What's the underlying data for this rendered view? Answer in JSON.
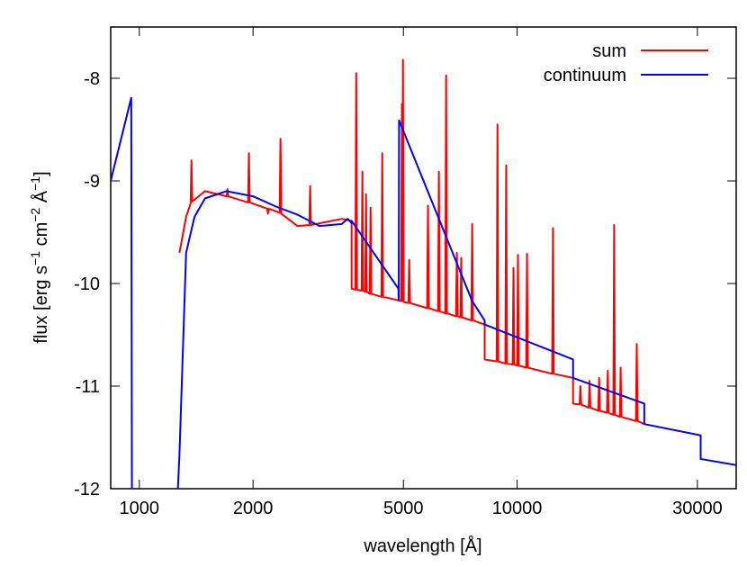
{
  "chart_data": {
    "type": "line",
    "xlabel": "wavelength [Å]",
    "ylabel": [
      "flux [erg s",
      "−1",
      " cm",
      "−2",
      " Å",
      "−1",
      "]"
    ],
    "xscale": "log",
    "xlim": [
      840,
      38000
    ],
    "xticks": [
      1000,
      2000,
      5000,
      10000,
      30000
    ],
    "ylim": [
      -12,
      -7.5
    ],
    "yticks": [
      -12,
      -11,
      -10,
      -9,
      -8
    ],
    "grid": false,
    "legend": "top-right",
    "series": [
      {
        "name": "sum",
        "color": "#ff0000",
        "x": [
          1277,
          1330,
          1367,
          1374,
          1381,
          1493,
          1703,
          1711,
          1719,
          1940,
          1950,
          1960,
          2180,
          2190,
          2200,
          2352,
          2364,
          2376,
          2624,
          2818,
          2832,
          2846,
          3435,
          3646,
          3647,
          3731,
          3750,
          3769,
          3875,
          3894,
          3913,
          3962,
          3981,
          4000,
          4073,
          4093,
          4113,
          4373,
          4395,
          4417,
          4930,
          4955,
          4970,
          4986,
          5011,
          5154,
          5180,
          5206,
          5779,
          5808,
          5837,
          6176,
          6207,
          6238,
          6454,
          6486,
          6518,
          6890,
          6925,
          6960,
          7076,
          7112,
          7148,
          7565,
          7603,
          7641,
          8204,
          8205,
          8826,
          8870,
          8914,
          9307,
          9354,
          9401,
          9731,
          9780,
          9829,
          10000,
          10050,
          10100,
          10567,
          10620,
          10673,
          12378,
          12440,
          12502,
          14060,
          14061,
          14627,
          14700,
          14773,
          15472,
          15550,
          15628,
          16398,
          16480,
          16562,
          17283,
          17370,
          17457,
          17970,
          18060,
          18150,
          18700,
          18790,
          18880,
          20626,
          20730,
          20834,
          21700
        ],
        "values": [
          -9.7,
          -9.35,
          -9.22,
          -8.8,
          -9.2,
          -9.1,
          -9.15,
          -9.08,
          -9.15,
          -9.21,
          -8.73,
          -9.21,
          -9.27,
          -9.32,
          -9.27,
          -9.31,
          -8.59,
          -9.32,
          -9.44,
          -9.43,
          -9.05,
          -9.43,
          -9.37,
          -9.39,
          -10.05,
          -10.06,
          -7.95,
          -10.06,
          -10.07,
          -8.91,
          -10.07,
          -10.08,
          -9.13,
          -10.08,
          -10.1,
          -9.26,
          -10.1,
          -10.13,
          -8.73,
          -10.13,
          -10.17,
          -8.25,
          -10.17,
          -7.82,
          -10.18,
          -10.19,
          -9.77,
          -10.19,
          -10.24,
          -9.24,
          -10.24,
          -10.27,
          -8.91,
          -10.27,
          -10.29,
          -7.97,
          -10.29,
          -10.32,
          -9.7,
          -10.32,
          -10.33,
          -9.75,
          -10.33,
          -10.36,
          -9.42,
          -10.36,
          -10.4,
          -10.74,
          -10.76,
          -8.45,
          -10.76,
          -10.78,
          -8.85,
          -10.78,
          -10.79,
          -9.85,
          -10.79,
          -10.8,
          -9.72,
          -10.8,
          -10.82,
          -9.71,
          -10.82,
          -10.88,
          -9.46,
          -10.88,
          -10.92,
          -11.17,
          -11.18,
          -11.0,
          -11.18,
          -11.21,
          -10.95,
          -11.21,
          -11.24,
          -10.92,
          -11.24,
          -11.26,
          -10.85,
          -11.26,
          -11.28,
          -9.43,
          -11.28,
          -11.3,
          -10.82,
          -11.3,
          -11.34,
          -10.59,
          -11.34,
          -11.37
        ]
      },
      {
        "name": "continuum",
        "color": "#0000ff",
        "x": [
          840,
          952,
          956,
          1166,
          1265,
          1277,
          1330,
          1400,
          1493,
          1700,
          2000,
          2300,
          2624,
          3000,
          3435,
          3560,
          3646,
          3647,
          4850,
          4860,
          4870,
          7600,
          8204,
          8205,
          14060,
          14061,
          21700,
          21701,
          30600,
          30601,
          38000
        ],
        "values": [
          -9.0,
          -8.19,
          -12,
          null,
          -12,
          -11.67,
          -9.7,
          -9.35,
          -9.17,
          -9.1,
          -9.15,
          -9.25,
          -9.33,
          -9.44,
          -9.42,
          -9.37,
          -9.41,
          -9.39,
          -10.05,
          -10.165,
          -8.41,
          -10.17,
          -10.36,
          -10.4,
          -10.74,
          -10.92,
          -11.17,
          -11.37,
          -11.48,
          -11.71,
          -11.77
        ]
      }
    ]
  }
}
